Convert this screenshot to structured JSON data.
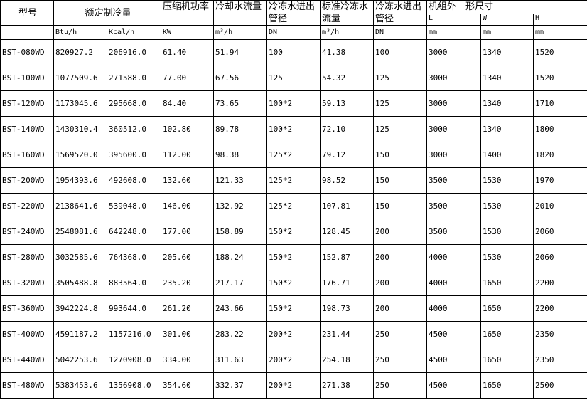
{
  "headers": {
    "model": "型号",
    "cooling_capacity": "额定制冷量",
    "compressor_power": "压缩机功率",
    "cooling_water_flow": "冷却水流量",
    "chilled_pipe_1": "冷冻水进出管径",
    "std_chilled_flow": "标准冷冻水流量",
    "chilled_pipe_2": "冷冻水进出管径",
    "dimensions": "机组外　形尺寸",
    "L": "L",
    "W": "W",
    "H": "H"
  },
  "units": [
    "Btu/h",
    "Kcal/h",
    "KW",
    "m³/h",
    "DN",
    "m³/h",
    "DN",
    "mm",
    "mm",
    "mm"
  ],
  "rows": [
    [
      "BST-080WD",
      "820927.2",
      "206916.0",
      "61.40",
      "51.94",
      "100",
      "41.38",
      "100",
      "3000",
      "1340",
      "1520"
    ],
    [
      "BST-100WD",
      "1077509.6",
      "271588.0",
      "77.00",
      "67.56",
      "125",
      "54.32",
      "125",
      "3000",
      "1340",
      "1520"
    ],
    [
      "BST-120WD",
      "1173045.6",
      "295668.0",
      "84.40",
      "73.65",
      "100*2",
      "59.13",
      "125",
      "3000",
      "1340",
      "1710"
    ],
    [
      "BST-140WD",
      "1430310.4",
      "360512.0",
      "102.80",
      "89.78",
      "100*2",
      "72.10",
      "125",
      "3000",
      "1340",
      "1800"
    ],
    [
      "BST-160WD",
      "1569520.0",
      "395600.0",
      "112.00",
      "98.38",
      "125*2",
      "79.12",
      "150",
      "3000",
      "1400",
      "1820"
    ],
    [
      "BST-200WD",
      "1954393.6",
      "492608.0",
      "132.60",
      "121.33",
      "125*2",
      "98.52",
      "150",
      "3500",
      "1530",
      "1970"
    ],
    [
      "BST-220WD",
      "2138641.6",
      "539048.0",
      "146.00",
      "132.92",
      "125*2",
      "107.81",
      "150",
      "3500",
      "1530",
      "2010"
    ],
    [
      "BST-240WD",
      "2548081.6",
      "642248.0",
      "177.00",
      "158.89",
      "150*2",
      "128.45",
      "200",
      "3500",
      "1530",
      "2060"
    ],
    [
      "BST-280WD",
      "3032585.6",
      "764368.0",
      "205.60",
      "188.24",
      "150*2",
      "152.87",
      "200",
      "4000",
      "1530",
      "2060"
    ],
    [
      "BST-320WD",
      "3505488.8",
      "883564.0",
      "235.20",
      "217.17",
      "150*2",
      "176.71",
      "200",
      "4000",
      "1650",
      "2200"
    ],
    [
      "BST-360WD",
      "3942224.8",
      "993644.0",
      "261.20",
      "243.66",
      "150*2",
      "198.73",
      "200",
      "4000",
      "1650",
      "2200"
    ],
    [
      "BST-400WD",
      "4591187.2",
      "1157216.0",
      "301.00",
      "283.22",
      "200*2",
      "231.44",
      "250",
      "4500",
      "1650",
      "2350"
    ],
    [
      "BST-440WD",
      "5042253.6",
      "1270908.0",
      "334.00",
      "311.63",
      "200*2",
      "254.18",
      "250",
      "4500",
      "1650",
      "2350"
    ],
    [
      "BST-480WD",
      "5383453.6",
      "1356908.0",
      "354.60",
      "332.37",
      "200*2",
      "271.38",
      "250",
      "4500",
      "1650",
      "2500"
    ]
  ]
}
